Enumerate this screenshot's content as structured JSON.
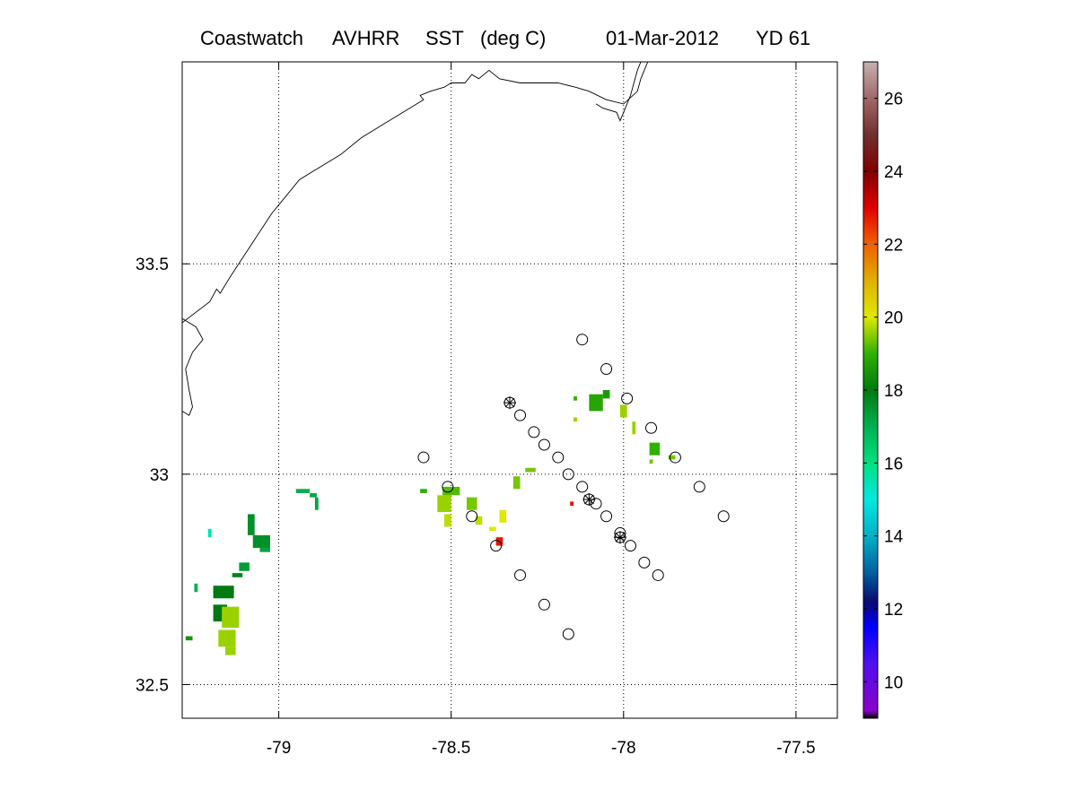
{
  "title": {
    "source": "Coastwatch",
    "sensor": "AVHRR",
    "product": "SST",
    "units": "(deg C)",
    "date": "01-Mar-2012",
    "yearday": "YD 61"
  },
  "chart_data": {
    "type": "scatter",
    "title": "Coastwatch AVHRR SST (deg C) 01-Mar-2012 YD 61",
    "xlabel": "",
    "ylabel": "",
    "xlim": [
      -79.28,
      -77.38
    ],
    "ylim": [
      32.42,
      33.98
    ],
    "xticks": [
      -79,
      -78.5,
      -78,
      -77.5
    ],
    "xtick_labels": [
      "-79",
      "-78.5",
      "-78",
      "-77.5"
    ],
    "yticks": [
      32.5,
      33,
      33.5
    ],
    "ytick_labels": [
      "32.5",
      "33",
      "33.5"
    ],
    "grid": true,
    "colorbar": {
      "range": [
        9,
        27
      ],
      "ticks": [
        10,
        12,
        14,
        16,
        18,
        20,
        22,
        24,
        26
      ],
      "tick_labels": [
        "10",
        "12",
        "14",
        "16",
        "18",
        "20",
        "22",
        "24",
        "26"
      ],
      "stops": [
        {
          "value": 9.0,
          "color": "#000000"
        },
        {
          "value": 9.2,
          "color": "#8a00c8"
        },
        {
          "value": 10.5,
          "color": "#5010ee"
        },
        {
          "value": 11.5,
          "color": "#0000ff"
        },
        {
          "value": 12.2,
          "color": "#0a0a70"
        },
        {
          "value": 13.0,
          "color": "#0060a0"
        },
        {
          "value": 14.0,
          "color": "#00b0c8"
        },
        {
          "value": 15.0,
          "color": "#00e8e0"
        },
        {
          "value": 16.0,
          "color": "#00e080"
        },
        {
          "value": 17.0,
          "color": "#00b050"
        },
        {
          "value": 18.0,
          "color": "#007a10"
        },
        {
          "value": 19.0,
          "color": "#30b000"
        },
        {
          "value": 20.0,
          "color": "#e0e800"
        },
        {
          "value": 21.0,
          "color": "#e0b000"
        },
        {
          "value": 22.0,
          "color": "#f06000"
        },
        {
          "value": 23.0,
          "color": "#e00000"
        },
        {
          "value": 24.0,
          "color": "#800000"
        },
        {
          "value": 25.0,
          "color": "#703030"
        },
        {
          "value": 26.0,
          "color": "#a06868"
        },
        {
          "value": 27.0,
          "color": "#c8b0b0"
        }
      ]
    },
    "coastline": {
      "main": [
        [
          -79.28,
          33.36
        ],
        [
          -79.2,
          33.41
        ],
        [
          -79.18,
          33.44
        ],
        [
          -79.17,
          33.43
        ],
        [
          -79.14,
          33.47
        ],
        [
          -79.1,
          33.52
        ],
        [
          -79.06,
          33.57
        ],
        [
          -79.02,
          33.62
        ],
        [
          -78.98,
          33.66
        ],
        [
          -78.94,
          33.7
        ],
        [
          -78.88,
          33.73
        ],
        [
          -78.82,
          33.76
        ],
        [
          -78.76,
          33.8
        ],
        [
          -78.7,
          33.83
        ],
        [
          -78.66,
          33.85
        ],
        [
          -78.62,
          33.87
        ],
        [
          -78.6,
          33.88
        ],
        [
          -78.58,
          33.89
        ],
        [
          -78.59,
          33.9
        ],
        [
          -78.56,
          33.91
        ],
        [
          -78.52,
          33.92
        ],
        [
          -78.5,
          33.93
        ],
        [
          -78.46,
          33.93
        ],
        [
          -78.44,
          33.95
        ],
        [
          -78.42,
          33.94
        ],
        [
          -78.39,
          33.96
        ],
        [
          -78.36,
          33.94
        ],
        [
          -78.3,
          33.93
        ],
        [
          -78.24,
          33.93
        ],
        [
          -78.19,
          33.93
        ],
        [
          -78.14,
          33.92
        ],
        [
          -78.1,
          33.91
        ],
        [
          -78.05,
          33.89
        ],
        [
          -78.0,
          33.88
        ],
        [
          -77.96,
          33.91
        ],
        [
          -77.95,
          33.94
        ],
        [
          -77.93,
          33.98
        ]
      ],
      "coves": [
        [
          [
            -79.28,
            33.15
          ],
          [
            -79.26,
            33.14
          ],
          [
            -79.25,
            33.16
          ],
          [
            -79.26,
            33.2
          ],
          [
            -79.27,
            33.25
          ],
          [
            -79.25,
            33.29
          ],
          [
            -79.22,
            33.32
          ],
          [
            -79.24,
            33.35
          ],
          [
            -79.28,
            33.37
          ]
        ],
        [
          [
            -78.08,
            33.88
          ],
          [
            -78.06,
            33.87
          ],
          [
            -78.02,
            33.86
          ],
          [
            -78.01,
            33.84
          ],
          [
            -78.0,
            33.86
          ],
          [
            -77.98,
            33.9
          ],
          [
            -77.97,
            33.93
          ],
          [
            -77.96,
            33.96
          ],
          [
            -77.95,
            33.98
          ]
        ]
      ]
    },
    "sst_cells": [
      {
        "lon": -79.05,
        "lat": 32.84,
        "w": 0.05,
        "h": 0.03,
        "sst": 17.6
      },
      {
        "lon": -79.08,
        "lat": 32.88,
        "w": 0.02,
        "h": 0.05,
        "sst": 17.6
      },
      {
        "lon": -79.04,
        "lat": 32.82,
        "w": 0.03,
        "h": 0.01,
        "sst": 17.2
      },
      {
        "lon": -79.1,
        "lat": 32.78,
        "w": 0.03,
        "h": 0.02,
        "sst": 17.4
      },
      {
        "lon": -79.12,
        "lat": 32.76,
        "w": 0.03,
        "h": 0.01,
        "sst": 17.8
      },
      {
        "lon": -79.16,
        "lat": 32.72,
        "w": 0.06,
        "h": 0.03,
        "sst": 18.0
      },
      {
        "lon": -79.17,
        "lat": 32.67,
        "w": 0.04,
        "h": 0.04,
        "sst": 18.0
      },
      {
        "lon": -79.14,
        "lat": 32.66,
        "w": 0.05,
        "h": 0.05,
        "sst": 19.6
      },
      {
        "lon": -79.15,
        "lat": 32.61,
        "w": 0.05,
        "h": 0.04,
        "sst": 19.6
      },
      {
        "lon": -79.14,
        "lat": 32.58,
        "w": 0.03,
        "h": 0.02,
        "sst": 19.6
      },
      {
        "lon": -79.24,
        "lat": 32.73,
        "w": 0.01,
        "h": 0.02,
        "sst": 17.0
      },
      {
        "lon": -79.26,
        "lat": 32.61,
        "w": 0.02,
        "h": 0.01,
        "sst": 18.5
      },
      {
        "lon": -79.2,
        "lat": 32.86,
        "w": 0.01,
        "h": 0.02,
        "sst": 15.5
      },
      {
        "lon": -78.93,
        "lat": 32.96,
        "w": 0.04,
        "h": 0.01,
        "sst": 17.0
      },
      {
        "lon": -78.89,
        "lat": 32.93,
        "w": 0.01,
        "h": 0.03,
        "sst": 17.2
      },
      {
        "lon": -78.9,
        "lat": 32.95,
        "w": 0.02,
        "h": 0.01,
        "sst": 17.2
      },
      {
        "lon": -78.58,
        "lat": 32.96,
        "w": 0.02,
        "h": 0.01,
        "sst": 19.0
      },
      {
        "lon": -78.52,
        "lat": 32.93,
        "w": 0.04,
        "h": 0.04,
        "sst": 19.6
      },
      {
        "lon": -78.5,
        "lat": 32.96,
        "w": 0.05,
        "h": 0.02,
        "sst": 19.2
      },
      {
        "lon": -78.51,
        "lat": 32.89,
        "w": 0.02,
        "h": 0.03,
        "sst": 19.8
      },
      {
        "lon": -78.44,
        "lat": 32.93,
        "w": 0.03,
        "h": 0.03,
        "sst": 19.4
      },
      {
        "lon": -78.42,
        "lat": 32.89,
        "w": 0.02,
        "h": 0.02,
        "sst": 19.8
      },
      {
        "lon": -78.38,
        "lat": 32.87,
        "w": 0.02,
        "h": 0.01,
        "sst": 20.0
      },
      {
        "lon": -78.35,
        "lat": 32.9,
        "w": 0.02,
        "h": 0.03,
        "sst": 20.0
      },
      {
        "lon": -78.31,
        "lat": 32.98,
        "w": 0.02,
        "h": 0.03,
        "sst": 19.4
      },
      {
        "lon": -78.27,
        "lat": 33.01,
        "w": 0.03,
        "h": 0.01,
        "sst": 19.4
      },
      {
        "lon": -78.36,
        "lat": 32.84,
        "w": 0.02,
        "h": 0.02,
        "sst": 22.8
      },
      {
        "lon": -78.15,
        "lat": 32.93,
        "w": 0.01,
        "h": 0.01,
        "sst": 22.8
      },
      {
        "lon": -78.08,
        "lat": 33.17,
        "w": 0.04,
        "h": 0.04,
        "sst": 18.8
      },
      {
        "lon": -78.05,
        "lat": 33.19,
        "w": 0.02,
        "h": 0.02,
        "sst": 18.6
      },
      {
        "lon": -78.0,
        "lat": 33.15,
        "w": 0.02,
        "h": 0.03,
        "sst": 19.6
      },
      {
        "lon": -77.97,
        "lat": 33.11,
        "w": 0.01,
        "h": 0.03,
        "sst": 19.6
      },
      {
        "lon": -78.14,
        "lat": 33.18,
        "w": 0.01,
        "h": 0.01,
        "sst": 19.0
      },
      {
        "lon": -78.14,
        "lat": 33.13,
        "w": 0.01,
        "h": 0.01,
        "sst": 19.6
      },
      {
        "lon": -77.91,
        "lat": 33.06,
        "w": 0.03,
        "h": 0.03,
        "sst": 19.0
      },
      {
        "lon": -77.92,
        "lat": 33.03,
        "w": 0.01,
        "h": 0.01,
        "sst": 19.4
      },
      {
        "lon": -77.86,
        "lat": 33.04,
        "w": 0.02,
        "h": 0.01,
        "sst": 19.4
      }
    ],
    "stations": [
      {
        "lon": -78.12,
        "lat": 33.32,
        "marker": "circle"
      },
      {
        "lon": -78.05,
        "lat": 33.25,
        "marker": "circle"
      },
      {
        "lon": -77.99,
        "lat": 33.18,
        "marker": "circle"
      },
      {
        "lon": -77.92,
        "lat": 33.11,
        "marker": "circle"
      },
      {
        "lon": -77.85,
        "lat": 33.04,
        "marker": "circle"
      },
      {
        "lon": -77.78,
        "lat": 32.97,
        "marker": "circle"
      },
      {
        "lon": -77.71,
        "lat": 32.9,
        "marker": "circle"
      },
      {
        "lon": -78.58,
        "lat": 33.04,
        "marker": "circle"
      },
      {
        "lon": -78.51,
        "lat": 32.97,
        "marker": "circle"
      },
      {
        "lon": -78.44,
        "lat": 32.9,
        "marker": "circle"
      },
      {
        "lon": -78.37,
        "lat": 32.83,
        "marker": "circle"
      },
      {
        "lon": -78.3,
        "lat": 32.76,
        "marker": "circle"
      },
      {
        "lon": -78.23,
        "lat": 32.69,
        "marker": "circle"
      },
      {
        "lon": -78.16,
        "lat": 32.62,
        "marker": "circle"
      },
      {
        "lon": -78.33,
        "lat": 33.17,
        "marker": "circle-star"
      },
      {
        "lon": -78.3,
        "lat": 33.14,
        "marker": "circle"
      },
      {
        "lon": -78.26,
        "lat": 33.1,
        "marker": "circle"
      },
      {
        "lon": -78.23,
        "lat": 33.07,
        "marker": "circle"
      },
      {
        "lon": -78.19,
        "lat": 33.04,
        "marker": "circle"
      },
      {
        "lon": -78.16,
        "lat": 33.0,
        "marker": "circle"
      },
      {
        "lon": -78.12,
        "lat": 32.97,
        "marker": "circle"
      },
      {
        "lon": -78.1,
        "lat": 32.94,
        "marker": "circle-star"
      },
      {
        "lon": -78.08,
        "lat": 32.93,
        "marker": "circle"
      },
      {
        "lon": -78.05,
        "lat": 32.9,
        "marker": "circle"
      },
      {
        "lon": -78.01,
        "lat": 32.86,
        "marker": "circle"
      },
      {
        "lon": -78.01,
        "lat": 32.85,
        "marker": "circle-star"
      },
      {
        "lon": -77.98,
        "lat": 32.83,
        "marker": "circle"
      },
      {
        "lon": -77.94,
        "lat": 32.79,
        "marker": "circle"
      },
      {
        "lon": -77.9,
        "lat": 32.76,
        "marker": "circle"
      }
    ]
  }
}
